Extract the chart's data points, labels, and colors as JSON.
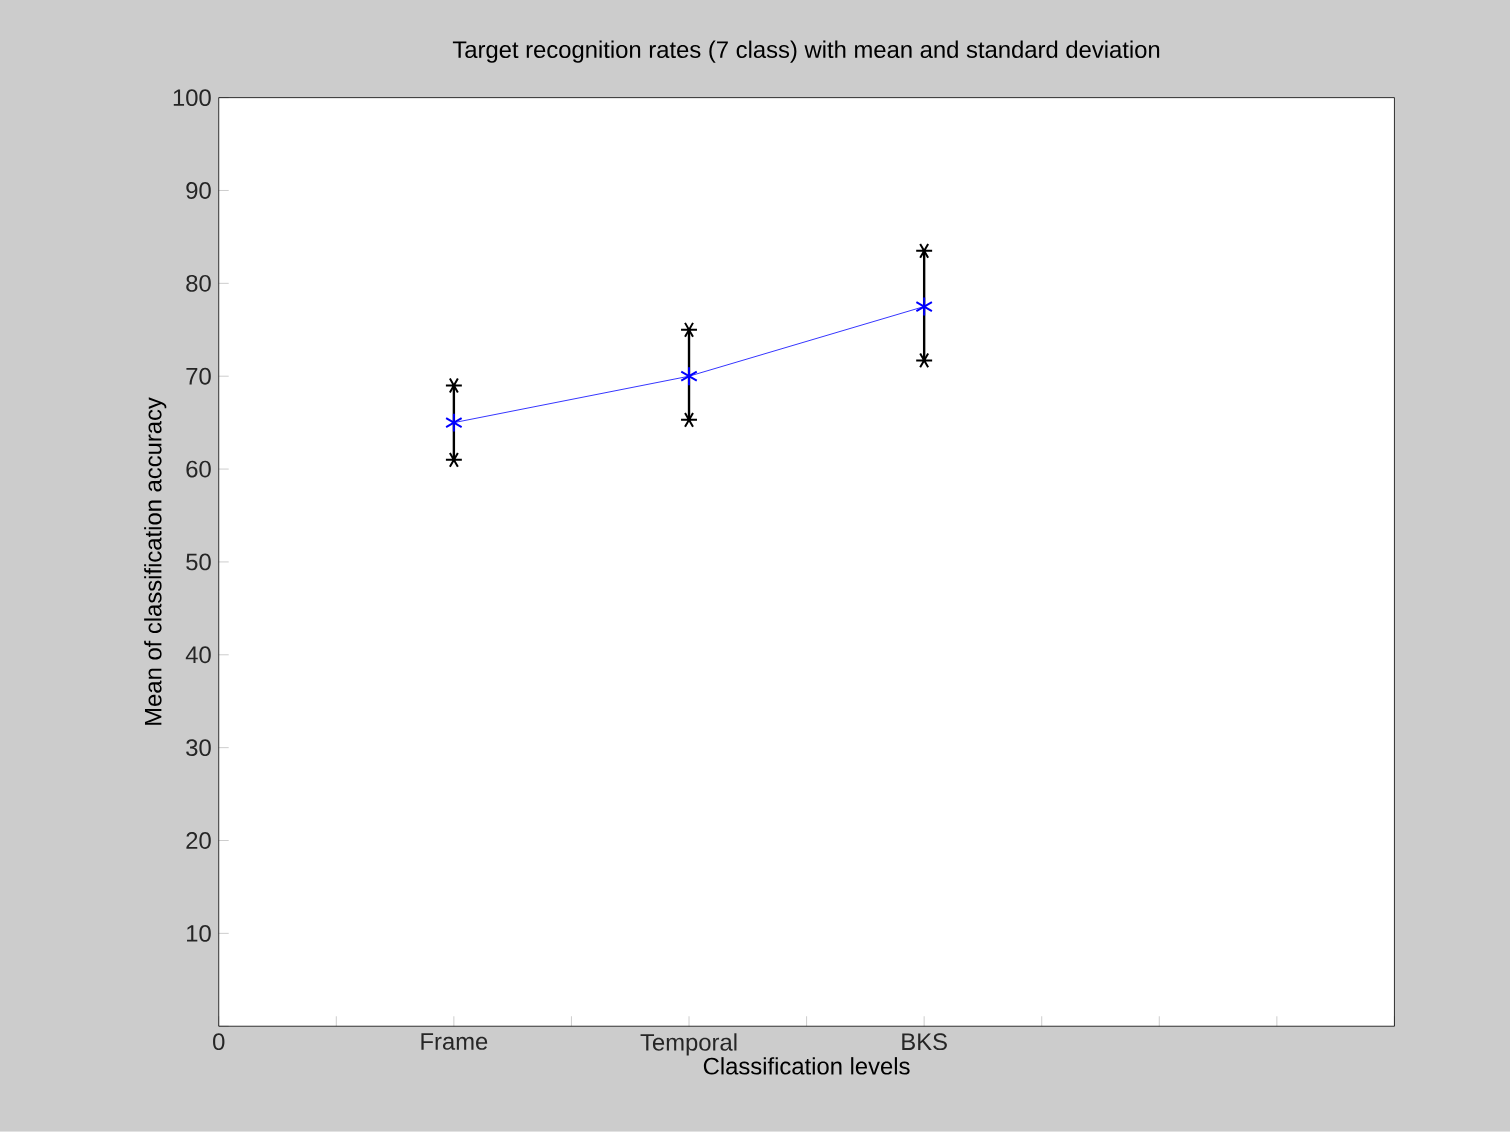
{
  "chart_data": {
    "type": "line",
    "title": "Target recognition rates (7 class) with mean and standard deviation",
    "xlabel": "Classification levels",
    "ylabel": "Mean of classification accuracy",
    "categories": [
      "0",
      null,
      "Frame",
      null,
      "Temporal",
      null,
      "BKS",
      null,
      null,
      null,
      null
    ],
    "series": [
      {
        "color": "#0000ff",
        "values": [
          null,
          null,
          65,
          null,
          70,
          null,
          77.5,
          null,
          null,
          null,
          null
        ],
        "errors": [
          null,
          null,
          [
            61,
            69
          ],
          null,
          [
            65.3,
            75
          ],
          null,
          [
            71.7,
            83.5
          ],
          null,
          null,
          null,
          null
        ]
      }
    ],
    "ylim": [
      0,
      100
    ],
    "yticks": [
      {
        "value": 0,
        "label": null
      },
      10,
      20,
      30,
      40,
      50,
      60,
      70,
      80,
      90,
      100
    ],
    "marker": "cross",
    "line_style": "solid"
  }
}
